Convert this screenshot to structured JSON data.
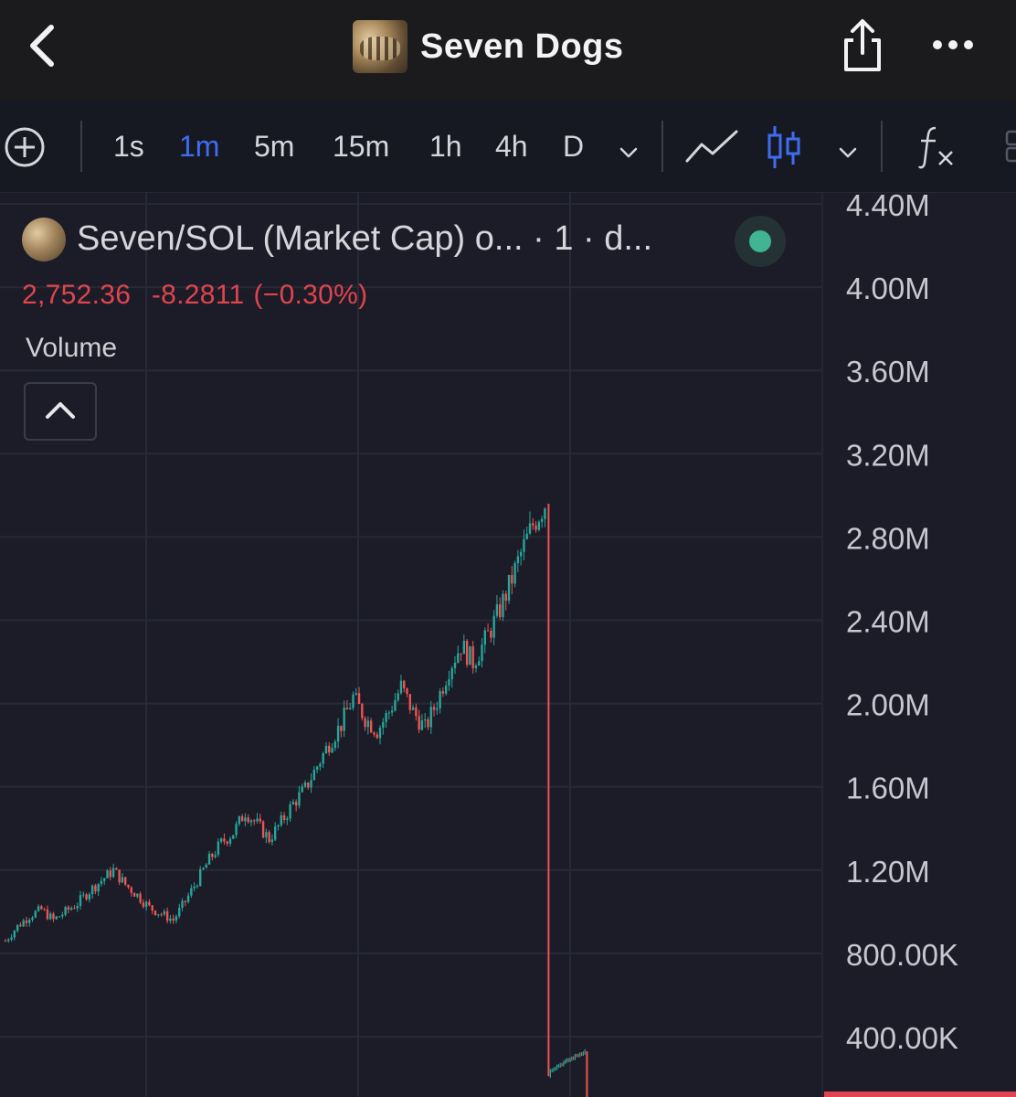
{
  "header": {
    "title": "Seven Dogs",
    "back_icon": "chevron-left-icon",
    "share_icon": "share-icon",
    "more_icon": "more-horizontal-icon"
  },
  "toolbar": {
    "add_icon": "plus-circle-icon",
    "intervals": [
      "1s",
      "1m",
      "5m",
      "15m",
      "1h",
      "4h",
      "D"
    ],
    "active_interval": "1m",
    "interval_dropdown_icon": "chevron-down-icon",
    "line_chart_icon": "line-chart-icon",
    "candle_chart_icon": "candlestick-icon",
    "chart_type_dropdown_icon": "chevron-down-icon",
    "indicators_icon": "fx-icon",
    "accent_color": "#3f6df2"
  },
  "legend": {
    "symbol_title": "Seven/SOL (Market Cap) o... · 1 · d...",
    "last_price": "2,752.36",
    "change": "-8.2811",
    "change_pct": "(−0.30%)",
    "volume_label": "Volume",
    "collapse_icon": "chevron-up-icon",
    "status": "live",
    "status_color": "#40b493"
  },
  "chart_data": {
    "type": "candlestick",
    "title": "",
    "xlabel": "",
    "ylabel": "",
    "y_axis_position": "right",
    "y_ticks": [
      "4.40M",
      "4.00M",
      "3.60M",
      "3.20M",
      "2.80M",
      "2.40M",
      "2.00M",
      "1.60M",
      "1.20M",
      "800.00K",
      "400.00K"
    ],
    "y_tick_values": [
      4400000,
      4000000,
      3600000,
      3200000,
      2800000,
      2400000,
      2000000,
      1600000,
      1200000,
      800000,
      400000
    ],
    "ylim": [
      180000,
      4450000
    ],
    "grid": true,
    "up_color": "#26a69a",
    "down_color": "#ef5350",
    "series": [
      {
        "trend_close_points": [
          [
            0,
            860000
          ],
          [
            4,
            930000
          ],
          [
            8,
            980000
          ],
          [
            12,
            1010000
          ],
          [
            16,
            960000
          ],
          [
            20,
            1000000
          ],
          [
            24,
            1040000
          ],
          [
            28,
            1100000
          ],
          [
            32,
            1150000
          ],
          [
            36,
            1200000
          ],
          [
            40,
            1130000
          ],
          [
            44,
            1080000
          ],
          [
            48,
            1020000
          ],
          [
            52,
            990000
          ],
          [
            56,
            960000
          ],
          [
            60,
            1050000
          ],
          [
            64,
            1150000
          ],
          [
            68,
            1250000
          ],
          [
            72,
            1330000
          ],
          [
            76,
            1380000
          ],
          [
            80,
            1480000
          ],
          [
            84,
            1420000
          ],
          [
            88,
            1350000
          ],
          [
            92,
            1430000
          ],
          [
            96,
            1520000
          ],
          [
            100,
            1590000
          ],
          [
            104,
            1700000
          ],
          [
            108,
            1810000
          ],
          [
            112,
            1900000
          ],
          [
            116,
            2030000
          ],
          [
            120,
            1930000
          ],
          [
            124,
            1870000
          ],
          [
            128,
            1960000
          ],
          [
            132,
            2080000
          ],
          [
            136,
            1960000
          ],
          [
            140,
            1880000
          ],
          [
            144,
            2010000
          ],
          [
            148,
            2170000
          ],
          [
            152,
            2280000
          ],
          [
            156,
            2200000
          ],
          [
            160,
            2300000
          ],
          [
            164,
            2420000
          ],
          [
            168,
            2560000
          ],
          [
            172,
            2720000
          ],
          [
            176,
            2860000
          ],
          [
            180,
            2960000
          ]
        ]
      },
      {
        "post_drop_points": [
          [
            190,
            240000
          ],
          [
            194,
            260000
          ],
          [
            198,
            290000
          ],
          [
            200,
            330000
          ]
        ]
      }
    ],
    "drop": {
      "from_index": 180,
      "from_value": 2960000,
      "to_index": 182,
      "to_value": 210000
    },
    "last_price_tag_color": "#e0444e"
  }
}
